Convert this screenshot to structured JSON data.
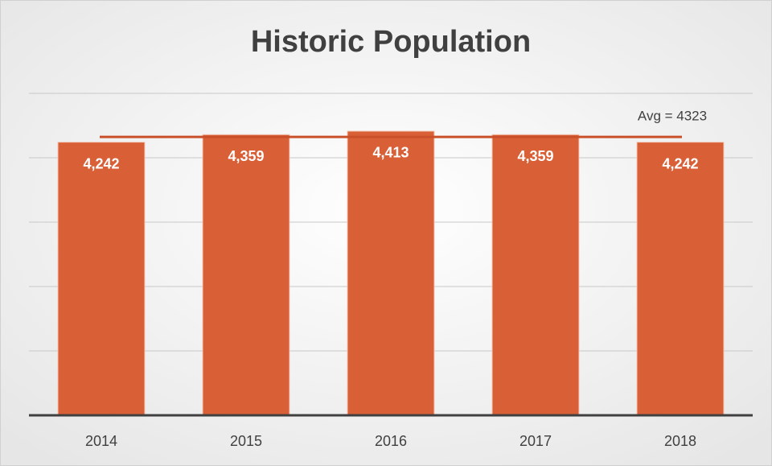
{
  "chart_data": {
    "type": "bar",
    "title": "Historic Population",
    "categories": [
      "2014",
      "2015",
      "2016",
      "2017",
      "2018"
    ],
    "values": [
      4242,
      4359,
      4413,
      4359,
      4242
    ],
    "value_labels": [
      "4,242",
      "4,359",
      "4,413",
      "4,359",
      "4,242"
    ],
    "color": "#d95f36",
    "ylim": [
      0,
      5000
    ],
    "yticks": [
      0,
      1000,
      2000,
      3000,
      4000,
      5000
    ],
    "grid": true,
    "average": {
      "label": "Avg = 4323",
      "value": 4323,
      "color": "#c9502a"
    }
  }
}
